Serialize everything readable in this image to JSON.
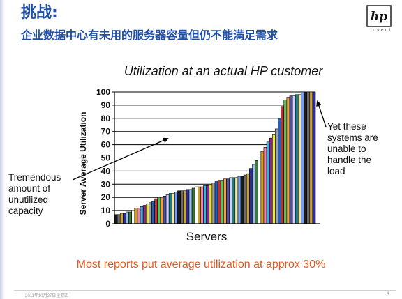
{
  "slide": {
    "title": "挑战:",
    "subtitle": "企业数据中心有未用的服务器容量但仍不能满足需求",
    "logo_text": "hp",
    "logo_tagline": "invent",
    "footer_date": "2011年10月27日星期四",
    "page_number": "4",
    "summary": "Most reports put average utilization at approx 30%"
  },
  "annotations": {
    "left": [
      "Tremendous",
      "amount of",
      "unutilized",
      "capacity"
    ],
    "right": [
      "Yet these",
      "systems are",
      "unable to",
      "handle the",
      "load"
    ]
  },
  "colors": {
    "title": "#1f4fa8",
    "summary": "#e8561d",
    "bar_palette": [
      "#1a1a1a",
      "#6a6a6a",
      "#c8a23c",
      "#2c2c9c",
      "#9bc0e8",
      "#3a7a3a",
      "#ffffff",
      "#d0a020",
      "#f080b0",
      "#40b0e0",
      "#8a2a8a",
      "#e8e840",
      "#a0a0a0",
      "#2060c0",
      "#c03030",
      "#60c060",
      "#f0a040",
      "#5050a0",
      "#d0d0ff",
      "#208080",
      "#f8e8a0",
      "#70a0ff"
    ]
  },
  "chart_data": {
    "type": "bar",
    "title": "Utilization at an actual HP customer",
    "xlabel": "Servers",
    "ylabel": "Server Average Utilization",
    "ylim": [
      0,
      100
    ],
    "yticks": [
      0,
      10,
      20,
      30,
      40,
      50,
      60,
      70,
      80,
      90,
      100
    ],
    "grid": true,
    "values": [
      7,
      7,
      8,
      8,
      9,
      9,
      10,
      12,
      12,
      13,
      14,
      15,
      16,
      17,
      19,
      20,
      20,
      21,
      22,
      23,
      23,
      24,
      25,
      25,
      25,
      26,
      26,
      27,
      28,
      28,
      28,
      29,
      29,
      30,
      31,
      32,
      33,
      33,
      34,
      34,
      35,
      35,
      35,
      36,
      36,
      37,
      38,
      42,
      45,
      48,
      52,
      55,
      58,
      62,
      65,
      68,
      72,
      80,
      89,
      94,
      96,
      97,
      97,
      98,
      98,
      100,
      100,
      100,
      100,
      100
    ]
  }
}
